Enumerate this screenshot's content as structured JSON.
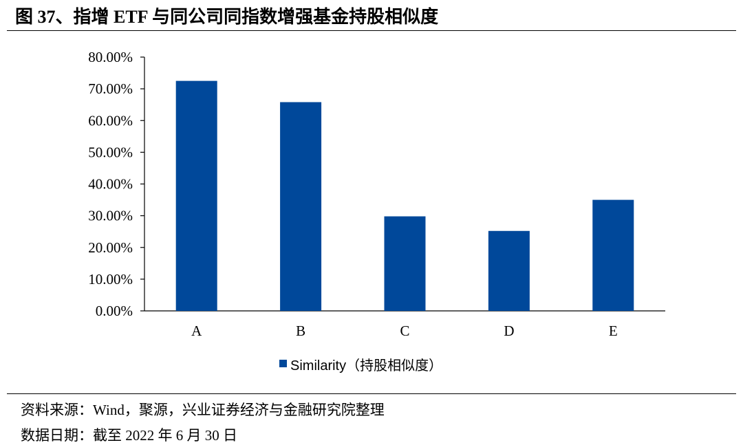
{
  "figure": {
    "title": "图 37、指增 ETF 与同公司同指数增强基金持股相似度"
  },
  "chart_data": {
    "type": "bar",
    "categories": [
      "A",
      "B",
      "C",
      "D",
      "E"
    ],
    "series": [
      {
        "name": "Similarity（持股相似度）",
        "values": [
          72.5,
          65.8,
          29.8,
          25.2,
          35.0
        ]
      }
    ],
    "y_ticks": [
      "0.00%",
      "10.00%",
      "20.00%",
      "30.00%",
      "40.00%",
      "50.00%",
      "60.00%",
      "70.00%",
      "80.00%"
    ],
    "ylim": [
      0,
      80
    ],
    "y_unit": "%",
    "grid": false,
    "legend_position": "bottom",
    "bar_color": "#00489a"
  },
  "notes": {
    "source": "资料来源：Wind，聚源，兴业证券经济与金融研究院整理",
    "date": "数据日期：截至 2022 年 6 月 30 日"
  }
}
